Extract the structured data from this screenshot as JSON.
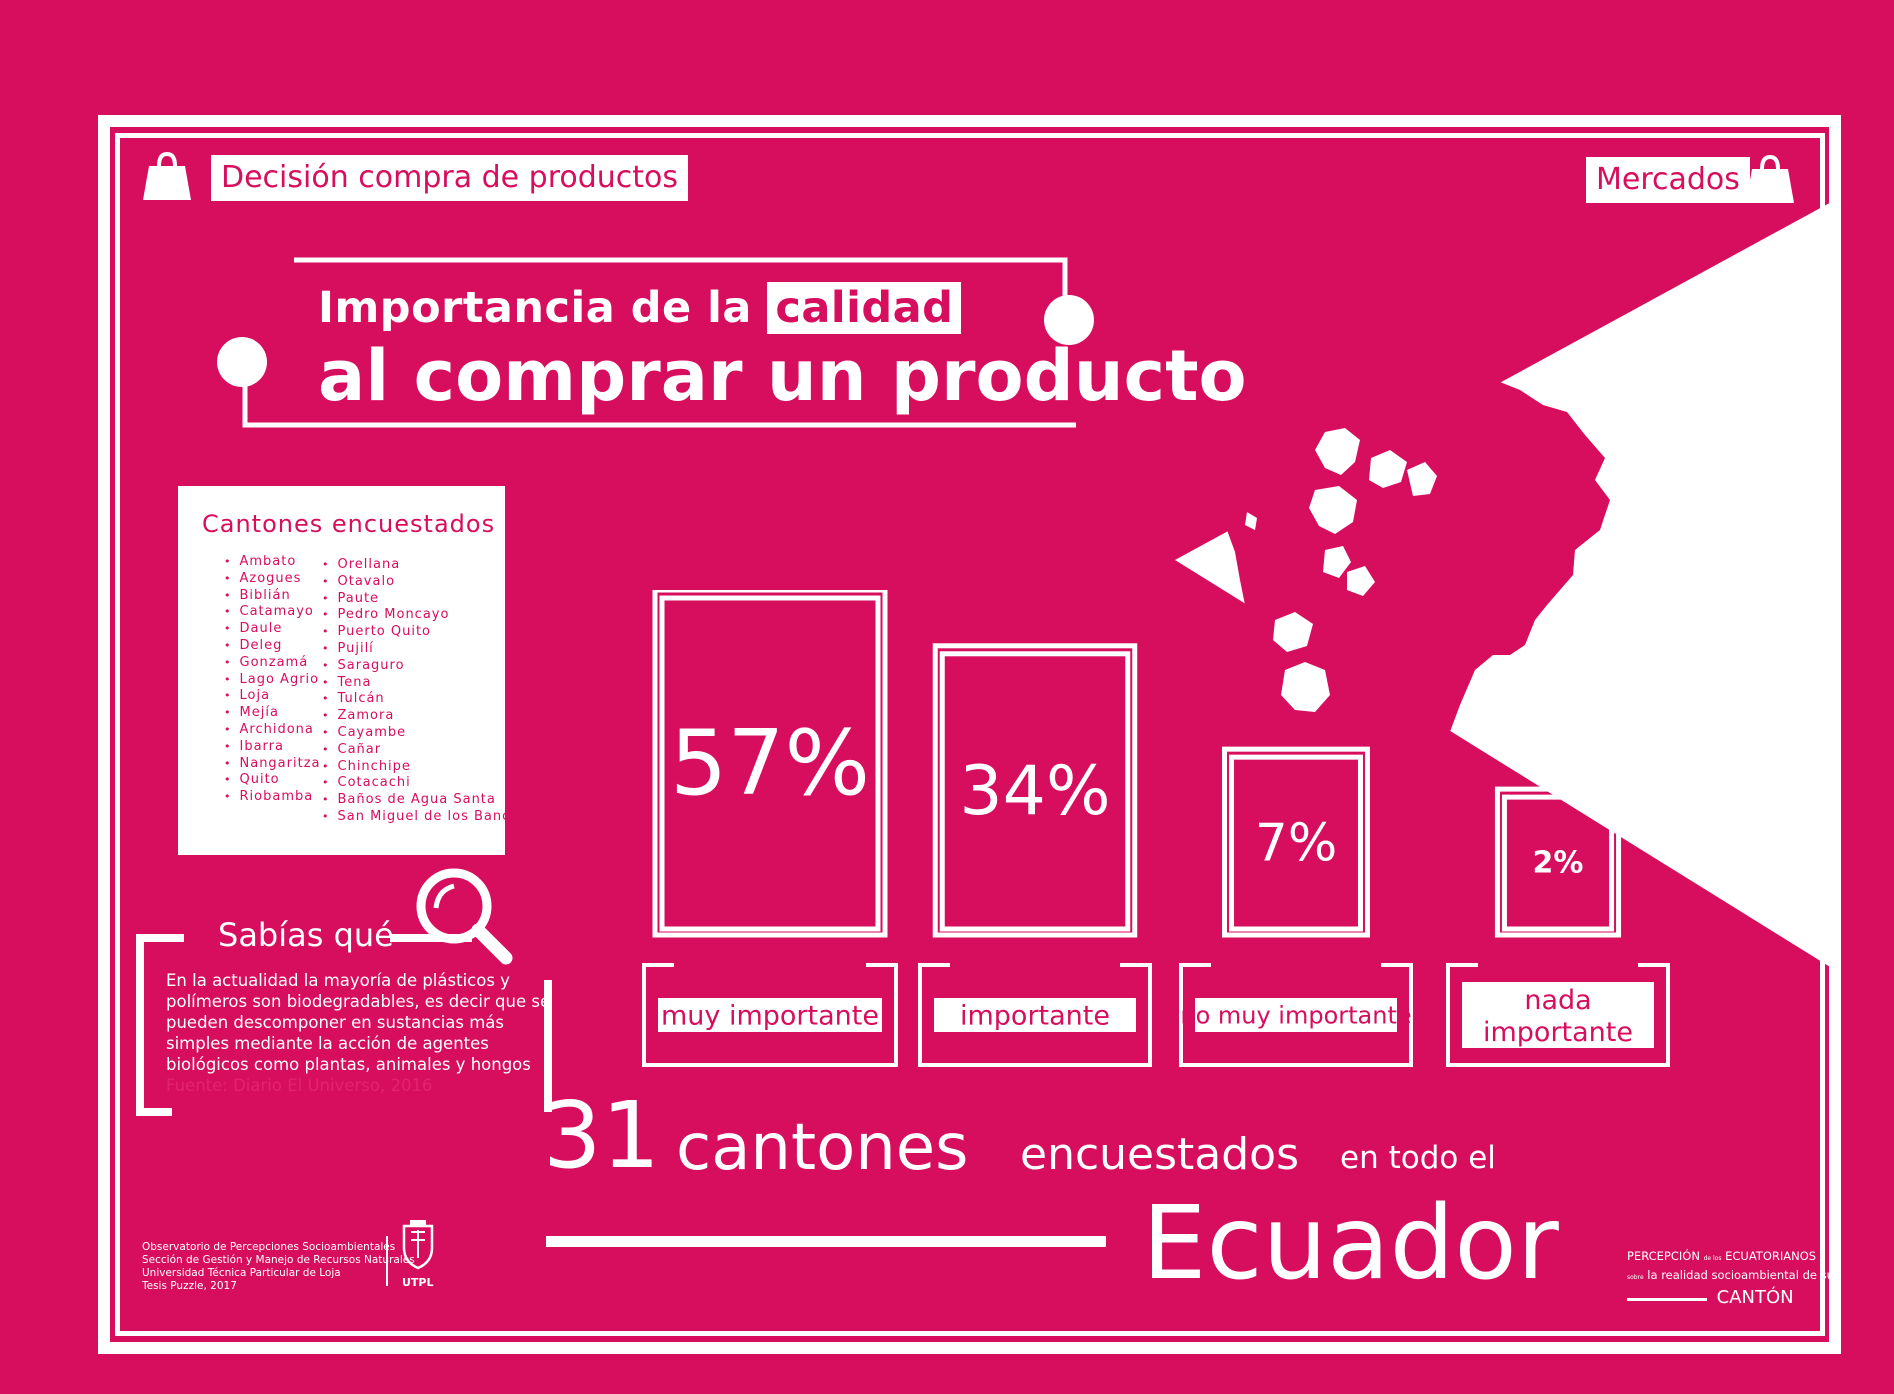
{
  "header": {
    "tag_left": "Decisión compra de productos",
    "tag_right": "Mercados",
    "left_icon": "shopping-bag-icon",
    "right_icon": "shopping-bag-icon"
  },
  "title": {
    "line1_pre": "Importancia de la",
    "line1_highlight": "calidad",
    "line2": "al comprar un producto"
  },
  "cantones_box": {
    "title": "Cantones encuestados",
    "col1": [
      "Ambato",
      "Azogues",
      "Biblián",
      "Catamayo",
      "Daule",
      "Deleg",
      "Gonzamá",
      "Lago Agrio",
      "Loja",
      "Mejía",
      "Archidona",
      "Ibarra",
      "Nangaritza",
      "Quito",
      "Riobamba"
    ],
    "col2": [
      "Orellana",
      "Otavalo",
      "Paute",
      "Pedro Moncayo",
      "Puerto Quito",
      "Pujilí",
      "Saraguro",
      "Tena",
      "Tulcán",
      "Zamora",
      "Cayambe",
      "Cañar",
      "Chinchipe",
      "Cotacachi",
      "Baños de Agua Santa",
      "San Miguel de los Bancos"
    ]
  },
  "sabias": {
    "title": "Sabías qué",
    "icon": "magnifier-icon",
    "text": "En la actualidad la mayoría de plásticos y polímeros son biodegradables, es decir que se pueden descomponer en sustancias más simples mediante la acción de agentes biológicos como plantas, animales y hongos",
    "source": "Fuente: Diario El Universo, 2016"
  },
  "chart_data": {
    "type": "bar",
    "categories": [
      "muy importante",
      "importante",
      "no muy importante",
      "nada importante"
    ],
    "values": [
      57,
      34,
      7,
      2
    ],
    "value_labels": [
      "57%",
      "34%",
      "7%",
      "2%"
    ]
  },
  "footer": {
    "big_number": "31",
    "word1": "cantones",
    "word2": "encuestados",
    "word3": "en todo el",
    "country": "Ecuador",
    "credits": [
      "Observatorio de Percepciones Socioambientales",
      "Sección de Gestión y Manejo de Recursos Naturales",
      "Universidad Técnica Particular de Loja",
      "Tesis Puzzle, 2017"
    ],
    "utpl_label": "UTPL",
    "brand_line1a": "PERCEPCIÓN",
    "brand_line1b": "de los",
    "brand_line1c": "ECUATORIANOS",
    "brand_line2a": "sobre",
    "brand_line2b": "la realidad socioambiental de su",
    "brand_line3": "CANTÓN"
  },
  "colors": {
    "accent": "#d70e5e",
    "white": "#ffffff"
  },
  "map_icon": "ecuador-map"
}
